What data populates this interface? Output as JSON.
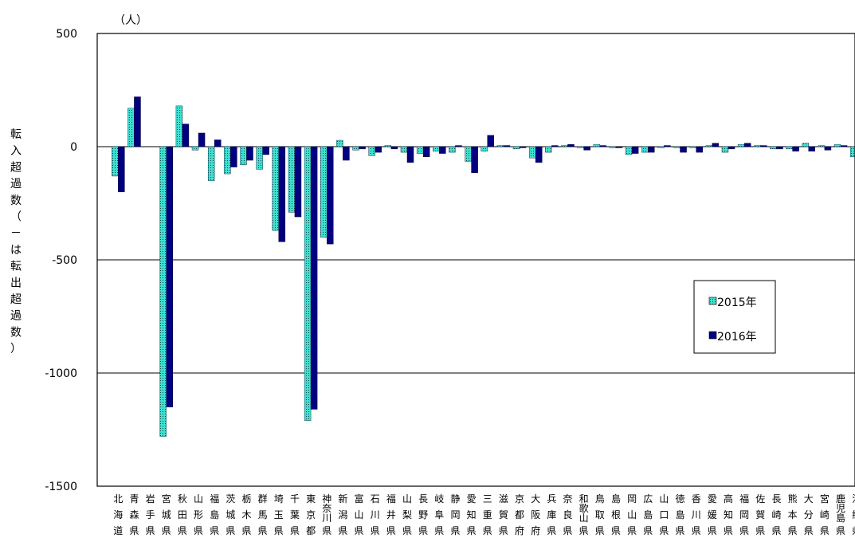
{
  "chart_data": {
    "type": "bar",
    "unit_label": "（人）",
    "ylabel": "転入超過数（－は転出超過数）",
    "xlabel": "",
    "ylim": [
      -1500,
      500
    ],
    "yticks": [
      500,
      0,
      -500,
      -1000,
      -1500
    ],
    "ytick_labels": [
      "500",
      "0",
      "-500",
      "-1000",
      "-1500"
    ],
    "grid": true,
    "legend_position": "right",
    "categories": [
      "北海道",
      "青森県",
      "岩手県",
      "宮城県",
      "秋田県",
      "山形県",
      "福島県",
      "茨城県",
      "栃木県",
      "群馬県",
      "埼玉県",
      "千葉県",
      "東京都",
      "神奈川県",
      "新潟県",
      "富山県",
      "石川県",
      "福井県",
      "山梨県",
      "長野県",
      "岐阜県",
      "静岡県",
      "愛知県",
      "三重県",
      "滋賀県",
      "京都府",
      "大阪府",
      "兵庫県",
      "奈良県",
      "和歌山県",
      "鳥取県",
      "島根県",
      "岡山県",
      "広島県",
      "山口県",
      "徳島県",
      "香川県",
      "愛媛県",
      "高知県",
      "福岡県",
      "佐賀県",
      "長崎県",
      "熊本県",
      "大分県",
      "宮崎県",
      "鹿児島県",
      "沖縄県"
    ],
    "series": [
      {
        "name": "2015年",
        "color": "#40e0d0",
        "values": [
          -130,
          170,
          0,
          -1280,
          180,
          -15,
          -150,
          -120,
          -80,
          -100,
          -370,
          -290,
          -1210,
          -400,
          28,
          -15,
          -40,
          5,
          -25,
          -30,
          -20,
          -25,
          -65,
          -20,
          5,
          -10,
          -50,
          -25,
          5,
          -5,
          10,
          -5,
          -35,
          -25,
          -5,
          -5,
          -5,
          5,
          -25,
          10,
          5,
          -10,
          -10,
          15,
          5,
          10,
          -45
        ]
      },
      {
        "name": "2016年",
        "color": "#000080",
        "values": [
          -200,
          220,
          0,
          -1150,
          100,
          60,
          30,
          -90,
          -60,
          -35,
          -420,
          -310,
          -1160,
          -430,
          -60,
          -10,
          -25,
          -10,
          -70,
          -45,
          -30,
          5,
          -115,
          50,
          5,
          -5,
          -70,
          5,
          10,
          -15,
          5,
          -5,
          -30,
          -25,
          5,
          -25,
          -25,
          15,
          -10,
          15,
          5,
          -10,
          -20,
          -20,
          -15,
          5,
          -5
        ]
      }
    ]
  }
}
